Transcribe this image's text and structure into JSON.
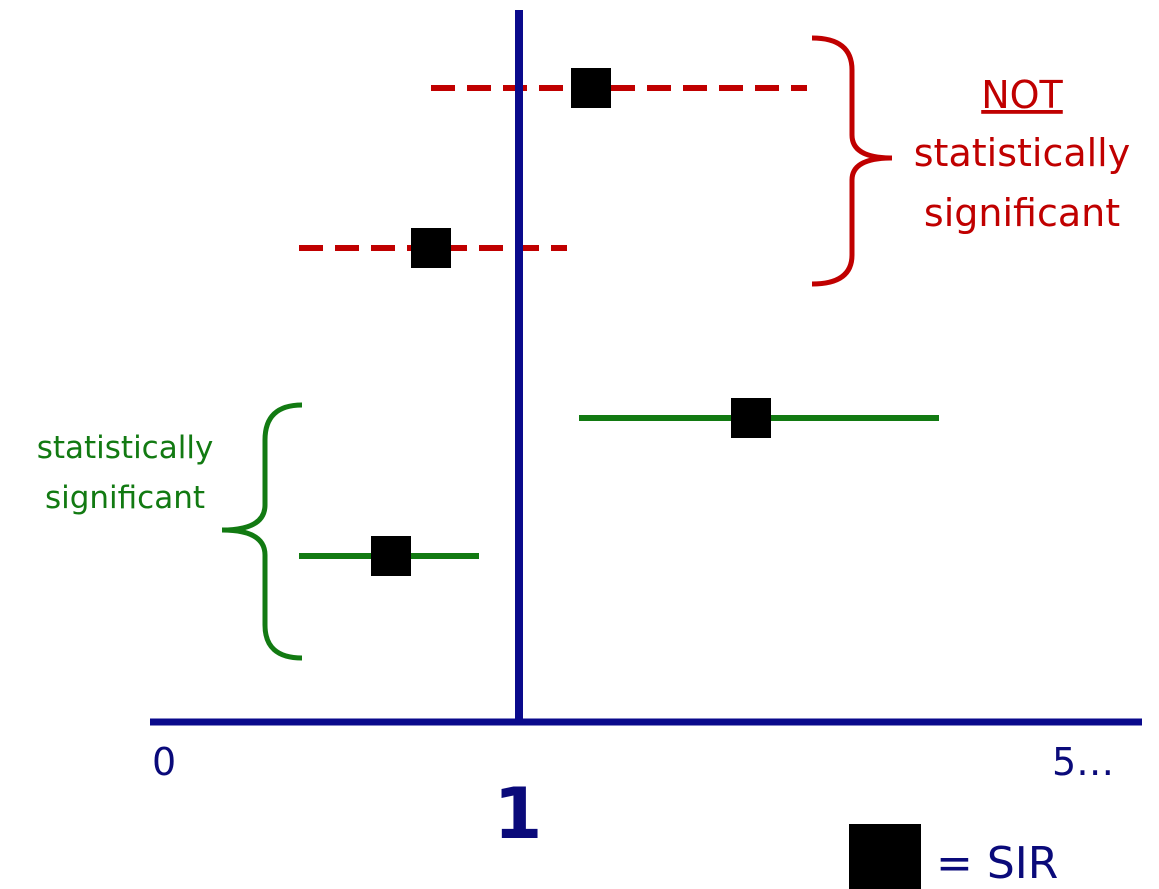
{
  "chart_data": {
    "type": "scatter",
    "title": "",
    "xlabel": "",
    "ylabel": "",
    "xlim": [
      0,
      5
    ],
    "tick_labels": {
      "left": "0",
      "right": "5…"
    },
    "reference_line": {
      "x": 1,
      "label": "1",
      "color": "#0a0a8c"
    },
    "points": [
      {
        "estimate": 1.18,
        "lower": 0.78,
        "upper": 1.72,
        "significant": false
      },
      {
        "estimate": 0.78,
        "lower": 0.45,
        "upper": 1.12,
        "significant": false
      },
      {
        "estimate": 1.58,
        "lower": 1.15,
        "upper": 2.05,
        "significant": true
      },
      {
        "estimate": 0.68,
        "lower": 0.45,
        "upper": 0.9,
        "significant": true
      }
    ],
    "annotations": {
      "not_significant": {
        "lines": [
          "NOT",
          "statistically",
          "significant"
        ],
        "color": "#c00000"
      },
      "significant": {
        "lines": [
          "statistically",
          "significant"
        ],
        "color": "#127a12"
      }
    },
    "legend": {
      "marker": "black-square",
      "label": "= SIR"
    },
    "colors": {
      "axis": "#0a0a8c",
      "marker": "#000000",
      "not_significant": "#c00000",
      "significant": "#127a12"
    }
  }
}
